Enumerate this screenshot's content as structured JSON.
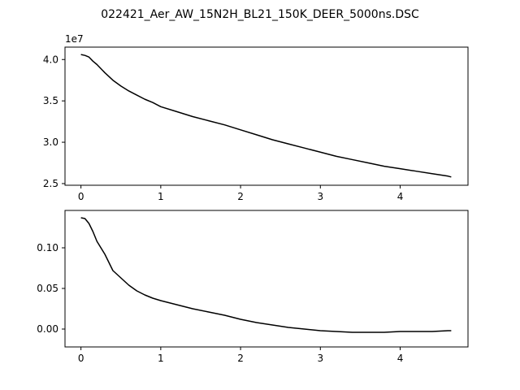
{
  "figure": {
    "title": "022421_Aer_AW_15N2H_BL21_150K_DEER_5000ns.DSC"
  },
  "chart_data": [
    {
      "type": "line",
      "title": "",
      "xlabel": "",
      "ylabel": "",
      "offset_text": "1e7",
      "xlim": [
        -0.2,
        4.85
      ],
      "ylim": [
        24800000,
        41500000
      ],
      "x_ticks": [
        0,
        1,
        2,
        3,
        4
      ],
      "x_tick_labels": [
        "0",
        "1",
        "2",
        "3",
        "4"
      ],
      "y_ticks": [
        25000000,
        30000000,
        35000000,
        40000000
      ],
      "y_tick_labels": [
        "2.5",
        "3.0",
        "3.5",
        "4.0"
      ],
      "grid": false,
      "line_color": "#000000",
      "series": [
        {
          "points": [
            [
              0.0,
              40600000
            ],
            [
              0.05,
              40500000
            ],
            [
              0.1,
              40300000
            ],
            [
              0.15,
              39800000
            ],
            [
              0.2,
              39400000
            ],
            [
              0.3,
              38400000
            ],
            [
              0.4,
              37500000
            ],
            [
              0.5,
              36800000
            ],
            [
              0.6,
              36200000
            ],
            [
              0.7,
              35700000
            ],
            [
              0.8,
              35200000
            ],
            [
              0.9,
              34800000
            ],
            [
              1.0,
              34300000
            ],
            [
              1.2,
              33700000
            ],
            [
              1.4,
              33100000
            ],
            [
              1.6,
              32600000
            ],
            [
              1.8,
              32100000
            ],
            [
              2.0,
              31500000
            ],
            [
              2.2,
              30900000
            ],
            [
              2.4,
              30300000
            ],
            [
              2.6,
              29800000
            ],
            [
              2.8,
              29300000
            ],
            [
              3.0,
              28800000
            ],
            [
              3.2,
              28300000
            ],
            [
              3.4,
              27900000
            ],
            [
              3.6,
              27500000
            ],
            [
              3.8,
              27100000
            ],
            [
              4.0,
              26800000
            ],
            [
              4.2,
              26500000
            ],
            [
              4.4,
              26200000
            ],
            [
              4.6,
              25900000
            ],
            [
              4.64,
              25800000
            ]
          ]
        }
      ]
    },
    {
      "type": "line",
      "title": "",
      "xlabel": "",
      "ylabel": "",
      "xlim": [
        -0.2,
        4.85
      ],
      "ylim": [
        -0.022,
        0.146
      ],
      "x_ticks": [
        0,
        1,
        2,
        3,
        4
      ],
      "x_tick_labels": [
        "0",
        "1",
        "2",
        "3",
        "4"
      ],
      "y_ticks": [
        0.0,
        0.05,
        0.1
      ],
      "y_tick_labels": [
        "0.00",
        "0.05",
        "0.10"
      ],
      "grid": false,
      "line_color": "#000000",
      "series": [
        {
          "points": [
            [
              0.0,
              0.137
            ],
            [
              0.05,
              0.136
            ],
            [
              0.1,
              0.13
            ],
            [
              0.15,
              0.12
            ],
            [
              0.2,
              0.108
            ],
            [
              0.3,
              0.092
            ],
            [
              0.4,
              0.072
            ],
            [
              0.5,
              0.063
            ],
            [
              0.6,
              0.054
            ],
            [
              0.7,
              0.047
            ],
            [
              0.8,
              0.042
            ],
            [
              0.9,
              0.038
            ],
            [
              1.0,
              0.035
            ],
            [
              1.2,
              0.03
            ],
            [
              1.4,
              0.025
            ],
            [
              1.6,
              0.021
            ],
            [
              1.8,
              0.017
            ],
            [
              2.0,
              0.012
            ],
            [
              2.2,
              0.008
            ],
            [
              2.4,
              0.005
            ],
            [
              2.6,
              0.002
            ],
            [
              2.8,
              0.0
            ],
            [
              3.0,
              -0.002
            ],
            [
              3.2,
              -0.003
            ],
            [
              3.4,
              -0.004
            ],
            [
              3.6,
              -0.004
            ],
            [
              3.8,
              -0.004
            ],
            [
              4.0,
              -0.003
            ],
            [
              4.2,
              -0.003
            ],
            [
              4.4,
              -0.003
            ],
            [
              4.6,
              -0.002
            ],
            [
              4.64,
              -0.002
            ]
          ]
        }
      ]
    }
  ]
}
